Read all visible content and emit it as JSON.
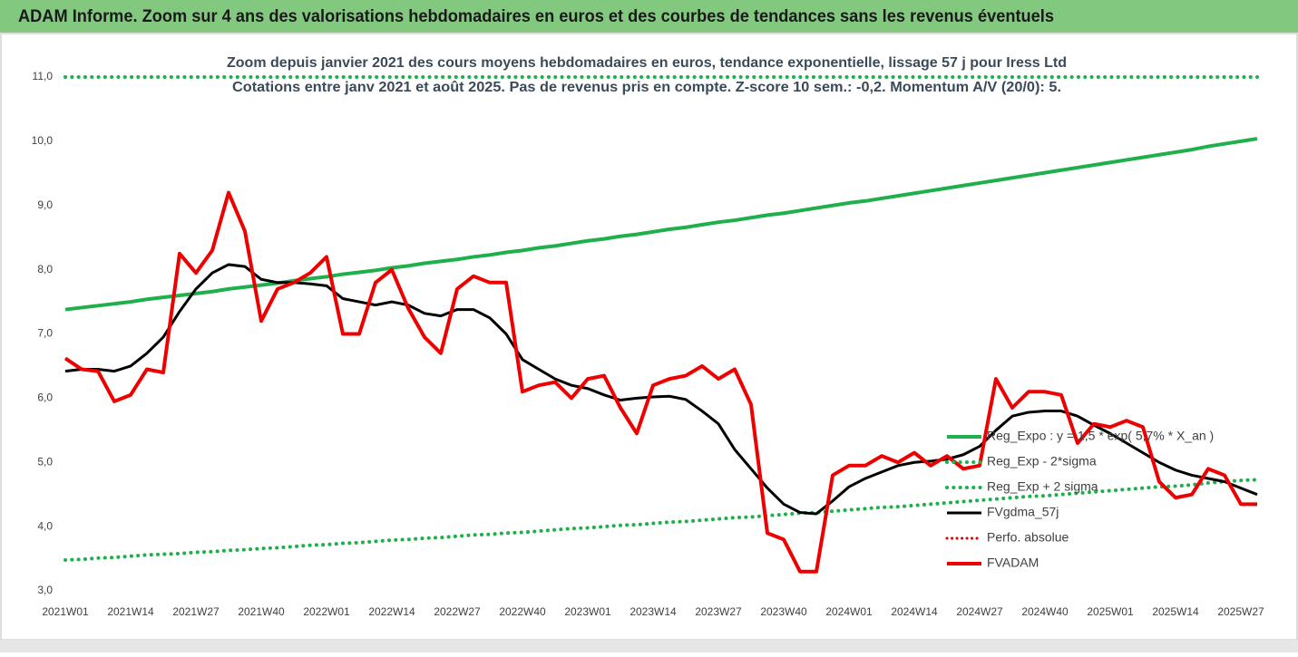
{
  "chart_data": {
    "type": "line",
    "title": "ADAM Informe. Zoom sur 4 ans des valorisations hebdomadaires en euros et des courbes de tendances sans les revenus éventuels",
    "subtitle": [
      "Zoom depuis janvier 2021 des cours moyens hebdomadaires en euros, tendance exponentielle, lissage 57 j pour Iress Ltd",
      "Cotations entre janv 2021 et août 2025.  Pas de revenus pris en compte. Z-score 10 sem.: -0,2. Momentum A/V (20/0): 5."
    ],
    "categories": [
      "2021W01",
      null,
      null,
      null,
      "2021W14",
      null,
      null,
      null,
      "2021W27",
      null,
      null,
      null,
      "2021W40",
      null,
      null,
      null,
      "2022W01",
      null,
      null,
      null,
      "2022W14",
      null,
      null,
      null,
      "2022W27",
      null,
      null,
      null,
      "2022W40",
      null,
      null,
      null,
      "2023W01",
      null,
      null,
      null,
      "2023W14",
      null,
      null,
      null,
      "2023W27",
      null,
      null,
      null,
      "2023W40",
      null,
      null,
      null,
      "2024W01",
      null,
      null,
      null,
      "2024W14",
      null,
      null,
      null,
      "2024W27",
      null,
      null,
      null,
      "2024W40",
      null,
      null,
      null,
      "2025W01",
      null,
      null,
      null,
      "2025W14",
      null,
      null,
      null,
      "2025W27",
      null
    ],
    "ylim": [
      3,
      11
    ],
    "yticks": [
      {
        "value": 3,
        "label": "3,0"
      },
      {
        "value": 4,
        "label": "4,0"
      },
      {
        "value": 5,
        "label": "5,0"
      },
      {
        "value": 6,
        "label": "6,0"
      },
      {
        "value": 7,
        "label": "7,0"
      },
      {
        "value": 8,
        "label": "8,0"
      },
      {
        "value": 9,
        "label": "9,0"
      },
      {
        "value": 10,
        "label": "10,0"
      },
      {
        "value": 11,
        "label": "11,0"
      }
    ],
    "grid": false,
    "legend": "right",
    "series": [
      {
        "name": "Reg_Expo : y = 1,5 * exp( 5,7% *  X_an )",
        "color": "#1fb04c",
        "line_style": "solid",
        "width": 4,
        "values": [
          7.38,
          7.41,
          7.44,
          7.47,
          7.5,
          7.54,
          7.57,
          7.6,
          7.63,
          7.66,
          7.7,
          7.73,
          7.76,
          7.79,
          7.83,
          7.86,
          7.89,
          7.93,
          7.96,
          7.99,
          8.03,
          8.06,
          8.1,
          8.13,
          8.16,
          8.2,
          8.23,
          8.27,
          8.3,
          8.34,
          8.37,
          8.41,
          8.45,
          8.48,
          8.52,
          8.55,
          8.59,
          8.63,
          8.66,
          8.7,
          8.74,
          8.77,
          8.81,
          8.85,
          8.88,
          8.92,
          8.96,
          9.0,
          9.04,
          9.07,
          9.11,
          9.15,
          9.19,
          9.23,
          9.27,
          9.31,
          9.35,
          9.39,
          9.43,
          9.47,
          9.51,
          9.55,
          9.59,
          9.63,
          9.67,
          9.71,
          9.75,
          9.79,
          9.83,
          9.87,
          9.92,
          9.96,
          10.0,
          10.04
        ]
      },
      {
        "name": "Reg_Exp - 2*sigma",
        "color": "#1fb04c",
        "line_style": "dotted",
        "width": 4,
        "values": [
          3.48,
          3.49,
          3.51,
          3.52,
          3.54,
          3.56,
          3.57,
          3.58,
          3.6,
          3.61,
          3.63,
          3.64,
          3.66,
          3.67,
          3.69,
          3.71,
          3.72,
          3.74,
          3.75,
          3.77,
          3.79,
          3.8,
          3.82,
          3.83,
          3.85,
          3.87,
          3.88,
          3.9,
          3.91,
          3.93,
          3.95,
          3.97,
          3.98,
          4.0,
          4.02,
          4.03,
          4.05,
          4.07,
          4.08,
          4.1,
          4.12,
          4.14,
          4.15,
          4.17,
          4.19,
          4.21,
          4.22,
          4.24,
          4.26,
          4.28,
          4.3,
          4.31,
          4.33,
          4.35,
          4.37,
          4.39,
          4.41,
          4.43,
          4.45,
          4.47,
          4.48,
          4.5,
          4.52,
          4.54,
          4.56,
          4.58,
          4.6,
          4.62,
          4.63,
          4.65,
          4.68,
          4.7,
          4.72,
          4.73
        ]
      },
      {
        "name": "Reg_Exp + 2 sigma",
        "color": "#1fb04c",
        "line_style": "dotted",
        "width": 4,
        "values": [
          11,
          11,
          11,
          11,
          11,
          11,
          11,
          11,
          11,
          11,
          11,
          11,
          11,
          11,
          11,
          11,
          11,
          11,
          11,
          11,
          11,
          11,
          11,
          11,
          11,
          11,
          11,
          11,
          11,
          11,
          11,
          11,
          11,
          11,
          11,
          11,
          11,
          11,
          11,
          11,
          11,
          11,
          11,
          11,
          11,
          11,
          11,
          11,
          11,
          11,
          11,
          11,
          11,
          11,
          11,
          11,
          11,
          11,
          11,
          11,
          11,
          11,
          11,
          11,
          11,
          11,
          11,
          11,
          11,
          11,
          11,
          11,
          11,
          11
        ]
      },
      {
        "name": "FVgdma_57j",
        "color": "#000000",
        "line_style": "solid",
        "width": 3,
        "values": [
          6.42,
          6.45,
          6.45,
          6.42,
          6.5,
          6.7,
          6.95,
          7.35,
          7.7,
          7.95,
          8.08,
          8.05,
          7.85,
          7.8,
          7.8,
          7.78,
          7.75,
          7.55,
          7.5,
          7.45,
          7.5,
          7.45,
          7.32,
          7.28,
          7.38,
          7.38,
          7.25,
          7.0,
          6.6,
          6.45,
          6.3,
          6.2,
          6.15,
          6.05,
          5.97,
          6.0,
          6.02,
          6.03,
          5.98,
          5.8,
          5.6,
          5.2,
          4.9,
          4.6,
          4.35,
          4.22,
          4.2,
          4.4,
          4.62,
          4.75,
          4.85,
          4.95,
          5.0,
          5.02,
          5.05,
          5.12,
          5.25,
          5.5,
          5.72,
          5.78,
          5.8,
          5.8,
          5.72,
          5.58,
          5.45,
          5.3,
          5.15,
          5.0,
          4.88,
          4.8,
          4.75,
          4.7,
          4.6,
          4.5
        ]
      },
      {
        "name": "Perfo. absolue",
        "color": "#e00000",
        "line_style": "dotted",
        "width": 3
      },
      {
        "name": "FVADAM",
        "color": "#ee0000",
        "line_style": "solid",
        "width": 4,
        "values": [
          6.62,
          6.45,
          6.42,
          5.95,
          6.05,
          6.45,
          6.4,
          8.25,
          7.95,
          8.3,
          9.2,
          8.6,
          7.2,
          7.7,
          7.8,
          7.95,
          8.2,
          7.0,
          7.0,
          7.8,
          8.0,
          7.4,
          6.95,
          6.7,
          7.7,
          7.9,
          7.8,
          7.8,
          6.1,
          6.2,
          6.25,
          6.0,
          6.3,
          6.35,
          5.85,
          5.45,
          6.2,
          6.3,
          6.35,
          6.5,
          6.3,
          6.45,
          5.9,
          3.9,
          3.8,
          3.3,
          3.3,
          4.8,
          4.95,
          4.95,
          5.1,
          5.0,
          5.15,
          4.95,
          5.1,
          4.9,
          4.95,
          6.3,
          5.85,
          6.1,
          6.1,
          6.05,
          5.3,
          5.6,
          5.55,
          5.65,
          5.55,
          4.7,
          4.45,
          4.5,
          4.9,
          4.8,
          4.35,
          4.35
        ]
      }
    ]
  }
}
